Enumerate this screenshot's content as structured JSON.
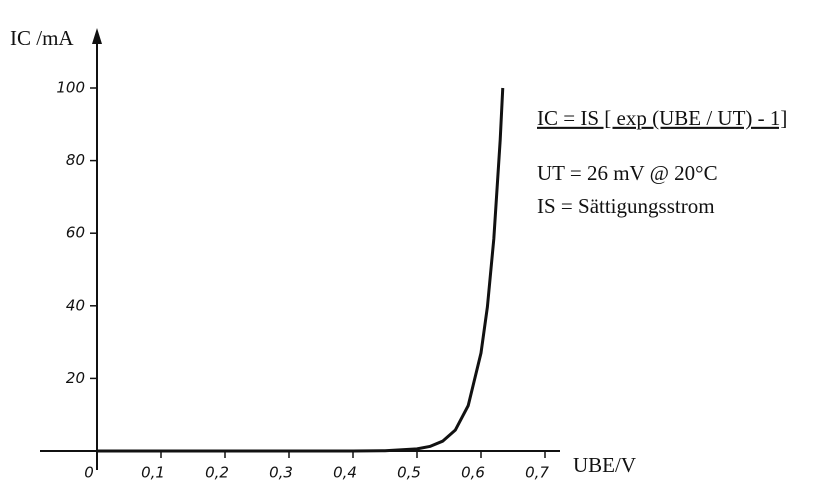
{
  "chart_data": {
    "type": "line",
    "x": [
      0,
      0.1,
      0.2,
      0.3,
      0.4,
      0.45,
      0.5,
      0.52,
      0.54,
      0.56,
      0.58,
      0.6,
      0.61,
      0.62,
      0.63,
      0.634
    ],
    "series": [
      {
        "color": "#111111",
        "values": [
          0,
          0,
          0,
          0,
          0.01,
          0.08,
          0.58,
          1.25,
          2.7,
          5.8,
          12.5,
          27,
          39.7,
          58.4,
          85.7,
          100
        ]
      }
    ],
    "xlim": [
      0,
      0.7
    ],
    "ylim": [
      0,
      100
    ],
    "xticks": [
      0,
      {
        "value": 0.1,
        "label": "0,1"
      },
      {
        "value": 0.2,
        "label": "0,2"
      },
      {
        "value": 0.3,
        "label": "0,3"
      },
      {
        "value": 0.4,
        "label": "0,4"
      },
      {
        "value": 0.5,
        "label": "0,5"
      },
      {
        "value": 0.6,
        "label": "0,6"
      },
      {
        "value": 0.7,
        "label": "0,7"
      }
    ],
    "yticks": [
      20,
      40,
      60,
      80,
      100
    ],
    "y_label": "IC /mA",
    "x_label": "UBE/V",
    "annotations": [
      "IC = IS [ exp (UBE / UT) - 1]",
      "UT = 26 mV @ 20°C",
      "IS = Sättigungsstrom"
    ]
  }
}
